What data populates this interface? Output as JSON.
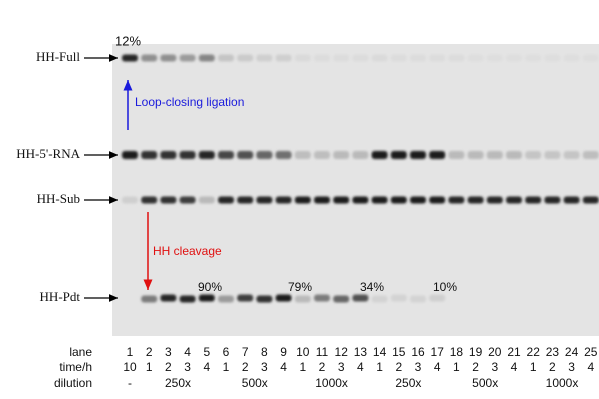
{
  "gel": {
    "band_labels": [
      "HH-Full",
      "HH-5'-RNA",
      "HH-Sub",
      "HH-Pdt"
    ],
    "ligation_yield": "12%",
    "ligation_annotation": "Loop-closing ligation",
    "cleavage_annotation": "HH cleavage",
    "cleavage_yields": [
      "90%",
      "79%",
      "34%",
      "10%"
    ],
    "lane_row": {
      "label": "lane",
      "values": [
        1,
        2,
        3,
        4,
        5,
        6,
        7,
        8,
        9,
        10,
        11,
        12,
        13,
        14,
        15,
        16,
        17,
        18,
        19,
        20,
        21,
        22,
        23,
        24,
        25
      ]
    },
    "time_row": {
      "label": "time/h",
      "values": [
        10,
        1,
        2,
        3,
        4,
        1,
        2,
        3,
        4,
        1,
        2,
        3,
        4,
        1,
        2,
        3,
        4,
        1,
        2,
        3,
        4,
        1,
        2,
        3,
        4
      ]
    },
    "dilution_row": {
      "label": "dilution",
      "values": [
        "-",
        "250x",
        "500x",
        "1000x",
        "250x",
        "500x",
        "1000x"
      ]
    }
  }
}
